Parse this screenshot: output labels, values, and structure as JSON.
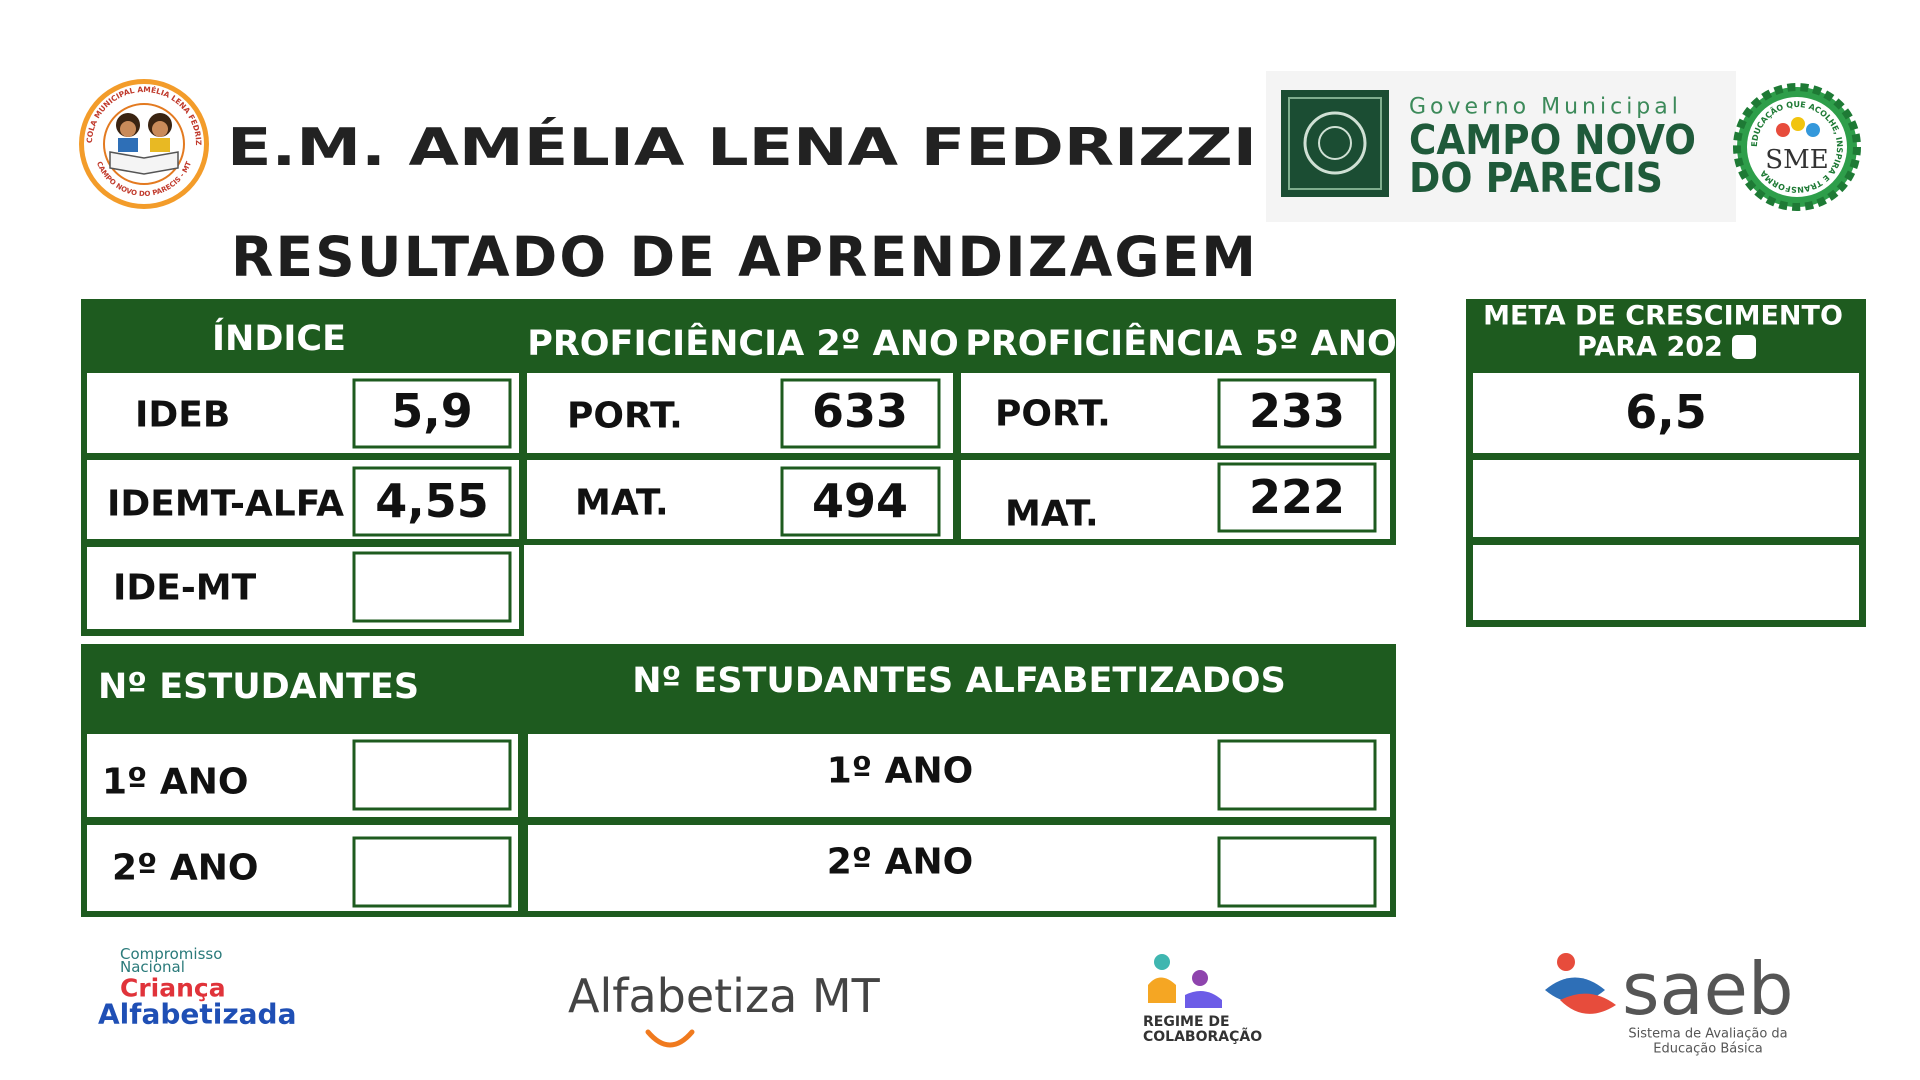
{
  "header": {
    "school_logo": {
      "top_text": "ESCOLA MUNICIPAL AMÉLIA LENA FEDRIZZI",
      "bottom_text": "CAMPO NOVO DO PARECIS - MT"
    },
    "title": "E.M. AMÉLIA LENA FEDRIZZI",
    "government_logo": {
      "line1": "Governo Municipal",
      "line2": "CAMPO NOVO",
      "line3": "DO PARECIS"
    },
    "sme_logo": {
      "ring_text": "EDUCAÇÃO QUE ACOLHE, INSPIRA E TRANSFORMA",
      "center_text": "SME"
    }
  },
  "subtitle": "RESULTADO DE APRENDIZAGEM",
  "indices_table": {
    "headers": [
      "ÍNDICE",
      "PROFICIÊNCIA 2º ANO",
      "PROFICIÊNCIA 5º ANO"
    ],
    "index_rows": [
      {
        "label": "IDEB",
        "value": "5,9"
      },
      {
        "label": "IDEMT-ALFA",
        "value": "4,55"
      },
      {
        "label": "IDE-MT"
      }
    ],
    "proficiency_2": [
      {
        "label": "PORT.",
        "value": "633"
      },
      {
        "label": "MAT.",
        "value": "494"
      }
    ],
    "proficiency_5": [
      {
        "label": "PORT.",
        "value": "233"
      },
      {
        "label": "MAT.",
        "value": "222"
      }
    ]
  },
  "growth_goal": {
    "header_line1": "META DE CRESCIMENTO",
    "header_line2": "PARA 202",
    "values": [
      "6,5"
    ]
  },
  "students_table": {
    "headers": [
      "Nº ESTUDANTES",
      "Nº ESTUDANTES ALFABETIZADOS"
    ],
    "students_rows": [
      "1º ANO",
      "2º ANO"
    ],
    "literate_rows": [
      "1º ANO",
      "2º ANO"
    ]
  },
  "footer": {
    "compromisso": {
      "line1": "Compromisso",
      "line2": "Nacional",
      "line3": "Criança",
      "line4": "Alfabetizada"
    },
    "alfabetiza": "Alfabetiza MT",
    "regime": {
      "line1": "REGIME DE",
      "line2": "COLABORAÇÃO"
    },
    "saeb": {
      "name": "saeb",
      "line1": "Sistema de Avaliação da",
      "line2": "Educação Básica"
    }
  }
}
